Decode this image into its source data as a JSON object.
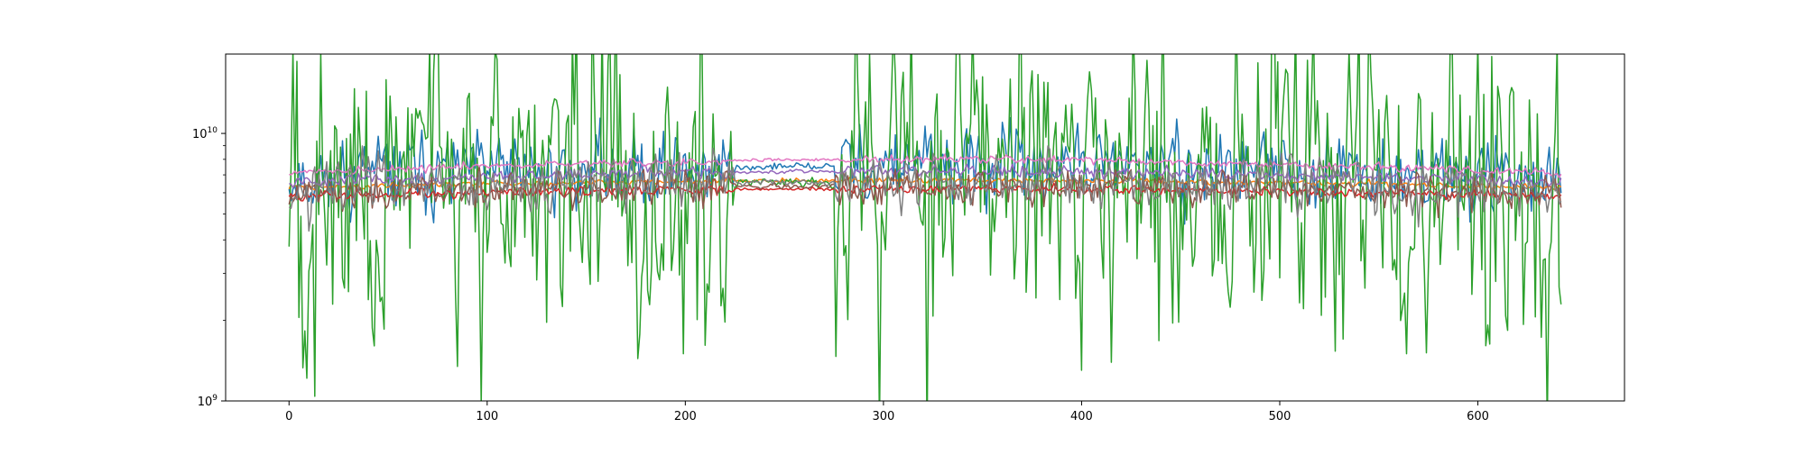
{
  "chart_data": {
    "type": "line",
    "title": "",
    "xlabel": "",
    "ylabel": "",
    "xlim": [
      -32,
      674
    ],
    "x_ticks": [
      0,
      100,
      200,
      300,
      400,
      500,
      600
    ],
    "x_tick_labels": [
      "0",
      "100",
      "200",
      "300",
      "400",
      "500",
      "600"
    ],
    "y_scale": "log",
    "ylim": [
      1000000000.0,
      19800000000.0
    ],
    "y_ticks": [
      1000000000.0,
      10000000000.0
    ],
    "y_tick_labels": [
      {
        "base": "10",
        "exp": "9"
      },
      {
        "base": "10",
        "exp": "10"
      }
    ],
    "grid": false,
    "legend": "none",
    "x_range": [
      0,
      642
    ],
    "calm_window": [
      225,
      275
    ],
    "series": [
      {
        "color": "#1f77b4",
        "median": 6900000000.0,
        "spread": 0.4,
        "calm_spread": 0.04,
        "trend": 0.15,
        "seed": 11
      },
      {
        "color": "#ff7f0e",
        "median": 6300000000.0,
        "spread": 0.03,
        "calm_spread": 0.02,
        "trend": 0.1,
        "seed": 22
      },
      {
        "color": "#2ca02c",
        "median": 6200000000.0,
        "spread": 1.8,
        "calm_spread": 0.05,
        "trend": 0.1,
        "seed": 33
      },
      {
        "color": "#d62728",
        "median": 5800000000.0,
        "spread": 0.05,
        "calm_spread": 0.02,
        "trend": 0.12,
        "seed": 44
      },
      {
        "color": "#9467bd",
        "median": 6600000000.0,
        "spread": 0.06,
        "calm_spread": 0.02,
        "trend": 0.15,
        "seed": 55
      },
      {
        "color": "#8c564b",
        "median": 6000000000.0,
        "spread": 0.18,
        "calm_spread": 0.03,
        "trend": 0.1,
        "seed": 66
      },
      {
        "color": "#e377c2",
        "median": 7100000000.0,
        "spread": 0.04,
        "calm_spread": 0.02,
        "trend": 0.2,
        "seed": 77
      },
      {
        "color": "#7f7f7f",
        "median": 6200000000.0,
        "spread": 0.28,
        "calm_spread": 0.04,
        "trend": 0.1,
        "seed": 88
      }
    ]
  }
}
